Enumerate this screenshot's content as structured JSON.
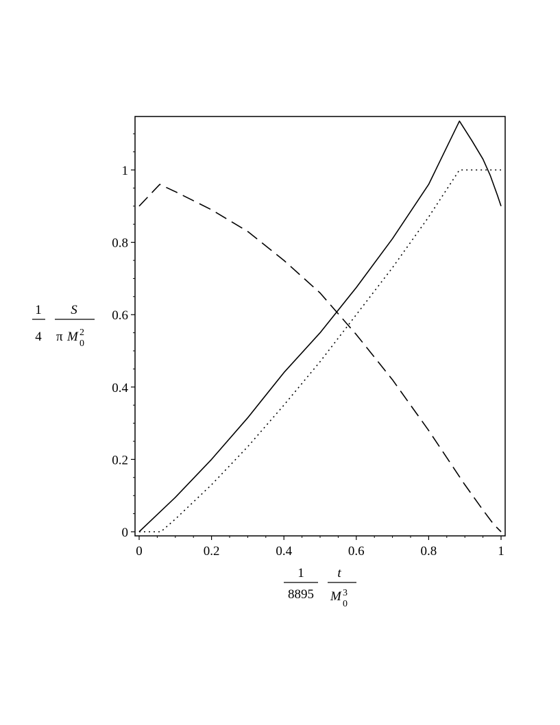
{
  "chart_data": {
    "type": "line",
    "xlim": [
      0,
      1
    ],
    "ylim": [
      0,
      1.14
    ],
    "x_ticks": [
      "0",
      "0.2",
      "0.4",
      "0.6",
      "0.8",
      "1"
    ],
    "y_ticks": [
      "0",
      "0.2",
      "0.4",
      "0.6",
      "0.8",
      "1"
    ],
    "ylabel": {
      "coeff_num": "1",
      "coeff_den": "4",
      "num_var": "S",
      "den_prefix": "π",
      "den_var": "M",
      "den_sub": "0",
      "den_sup": "2"
    },
    "xlabel": {
      "coeff_num": "1",
      "coeff_den": "8895",
      "num_var": "t",
      "den_var": "M",
      "den_sub": "0",
      "den_sup": "3"
    },
    "series": [
      {
        "style": "solid",
        "points": [
          [
            0,
            0
          ],
          [
            0.1,
            0.095
          ],
          [
            0.2,
            0.2
          ],
          [
            0.3,
            0.315
          ],
          [
            0.4,
            0.44
          ],
          [
            0.5,
            0.55
          ],
          [
            0.54,
            0.6
          ],
          [
            0.6,
            0.675
          ],
          [
            0.7,
            0.81
          ],
          [
            0.8,
            0.96
          ],
          [
            0.885,
            1.135
          ],
          [
            0.92,
            1.08
          ],
          [
            0.95,
            1.03
          ],
          [
            0.97,
            0.985
          ],
          [
            0.99,
            0.93
          ],
          [
            1.0,
            0.9
          ]
        ]
      },
      {
        "style": "dotted",
        "points": [
          [
            0,
            0
          ],
          [
            0.06,
            0
          ],
          [
            0.1,
            0.035
          ],
          [
            0.2,
            0.13
          ],
          [
            0.3,
            0.235
          ],
          [
            0.4,
            0.35
          ],
          [
            0.5,
            0.47
          ],
          [
            0.6,
            0.6
          ],
          [
            0.7,
            0.73
          ],
          [
            0.8,
            0.87
          ],
          [
            0.885,
            1.0
          ],
          [
            1.0,
            1.0
          ]
        ]
      },
      {
        "style": "dashed",
        "points": [
          [
            0,
            0.9
          ],
          [
            0.057,
            0.96
          ],
          [
            0.1,
            0.94
          ],
          [
            0.2,
            0.89
          ],
          [
            0.3,
            0.83
          ],
          [
            0.4,
            0.75
          ],
          [
            0.5,
            0.66
          ],
          [
            0.6,
            0.545
          ],
          [
            0.7,
            0.42
          ],
          [
            0.8,
            0.28
          ],
          [
            0.9,
            0.13
          ],
          [
            0.95,
            0.06
          ],
          [
            0.98,
            0.02
          ],
          [
            1.0,
            0
          ]
        ]
      }
    ]
  }
}
